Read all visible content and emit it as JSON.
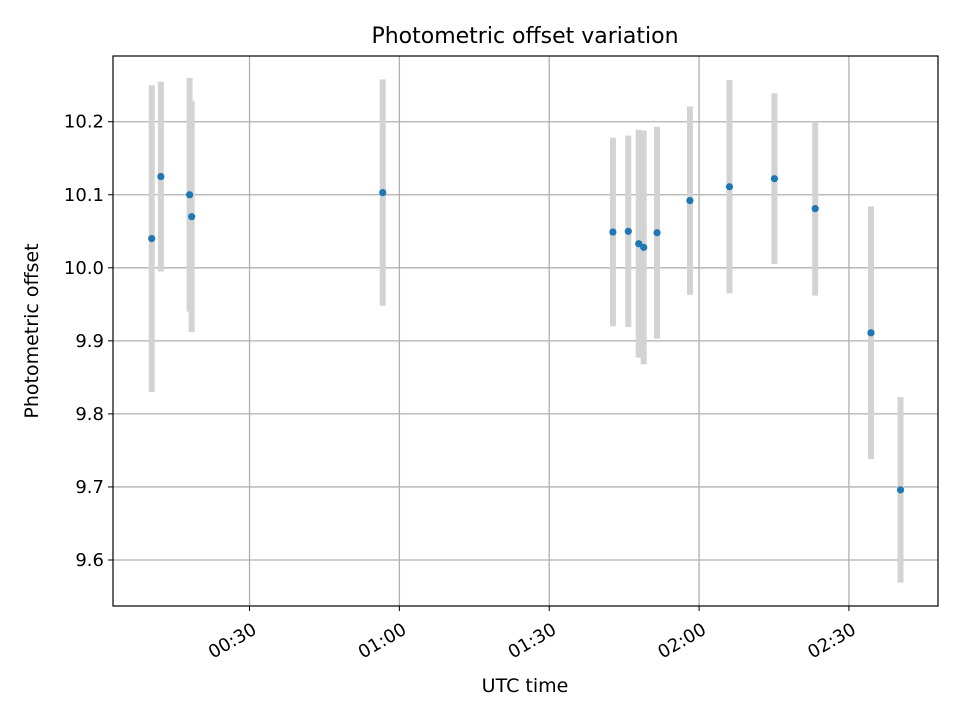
{
  "chart_data": {
    "type": "scatter",
    "title": "Photometric offset variation",
    "xlabel": "UTC time",
    "ylabel": "Photometric offset",
    "x_unit": "UTC time (HH:MM)",
    "xlim": [
      "00:02:40",
      "02:47:50"
    ],
    "ylim": [
      9.537,
      10.29
    ],
    "grid": true,
    "x_ticks": [
      "00:30",
      "01:00",
      "01:30",
      "02:00",
      "02:30"
    ],
    "y_ticks": [
      "9.6",
      "9.7",
      "9.8",
      "9.9",
      "10.0",
      "10.1",
      "10.2"
    ],
    "series": [
      {
        "points": [
          {
            "x": "00:10:25",
            "y": 10.04,
            "err": 0.21
          },
          {
            "x": "00:12:15",
            "y": 10.125,
            "err": 0.13
          },
          {
            "x": "00:18:00",
            "y": 10.1,
            "err": 0.16
          },
          {
            "x": "00:18:25",
            "y": 10.07,
            "err": 0.158
          },
          {
            "x": "00:56:40",
            "y": 10.103,
            "err": 0.155
          },
          {
            "x": "01:42:45",
            "y": 10.049,
            "err": 0.129
          },
          {
            "x": "01:45:50",
            "y": 10.05,
            "err": 0.131
          },
          {
            "x": "01:47:55",
            "y": 10.033,
            "err": 0.156
          },
          {
            "x": "01:48:55",
            "y": 10.028,
            "err": 0.16
          },
          {
            "x": "01:51:35",
            "y": 10.048,
            "err": 0.145
          },
          {
            "x": "01:58:10",
            "y": 10.092,
            "err": 0.129
          },
          {
            "x": "02:06:05",
            "y": 10.111,
            "err": 0.146
          },
          {
            "x": "02:15:05",
            "y": 10.122,
            "err": 0.117
          },
          {
            "x": "02:23:15",
            "y": 10.081,
            "err": 0.119
          },
          {
            "x": "02:34:25",
            "y": 9.911,
            "err": 0.173
          },
          {
            "x": "02:40:20",
            "y": 9.696,
            "err": 0.127
          }
        ]
      }
    ],
    "colors": {
      "marker": "#1f77b4",
      "errorbar": "#d3d3d3",
      "grid": "#b0b0b0",
      "axes": "#000000"
    }
  }
}
